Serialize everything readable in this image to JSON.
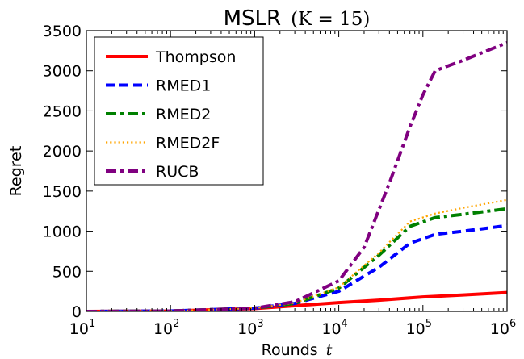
{
  "chart_data": {
    "type": "line",
    "title": "MSLR",
    "title_math": "(K = 15)",
    "xlabel": "Rounds",
    "xlabel_math": "t",
    "ylabel": "Regret",
    "x_scale": "log",
    "xlim": [
      10,
      1000000
    ],
    "ylim": [
      0,
      3500
    ],
    "x_ticks": [
      {
        "value": 10,
        "base": "10",
        "exp": "1"
      },
      {
        "value": 100,
        "base": "10",
        "exp": "2"
      },
      {
        "value": 1000,
        "base": "10",
        "exp": "3"
      },
      {
        "value": 10000,
        "base": "10",
        "exp": "4"
      },
      {
        "value": 100000,
        "base": "10",
        "exp": "5"
      },
      {
        "value": 1000000,
        "base": "10",
        "exp": "6"
      }
    ],
    "y_ticks": [
      "0",
      "500",
      "1000",
      "1500",
      "2000",
      "2500",
      "3000",
      "3500"
    ],
    "grid": false,
    "legend_position": "top-left",
    "series": [
      {
        "name": "Thompson",
        "color": "#ff0000",
        "style": "solid",
        "x": [
          10,
          100,
          1000,
          3000,
          10000,
          30000,
          100000,
          300000,
          1000000
        ],
        "y": [
          0,
          5,
          35,
          70,
          110,
          140,
          180,
          205,
          235
        ]
      },
      {
        "name": "RMED1",
        "color": "#0000ff",
        "style": "dashed",
        "x": [
          10,
          100,
          1000,
          3000,
          10000,
          30000,
          70000,
          140000,
          300000,
          1000000
        ],
        "y": [
          0,
          5,
          40,
          100,
          250,
          550,
          850,
          960,
          1000,
          1070
        ]
      },
      {
        "name": "RMED2",
        "color": "#008000",
        "style": "dashdot",
        "x": [
          10,
          100,
          1000,
          3000,
          10000,
          30000,
          70000,
          140000,
          300000,
          1000000
        ],
        "y": [
          0,
          5,
          40,
          100,
          290,
          700,
          1060,
          1170,
          1210,
          1280
        ]
      },
      {
        "name": "RMED2F",
        "color": "#ffa500",
        "style": "dotted",
        "x": [
          10,
          100,
          1000,
          3000,
          10000,
          30000,
          70000,
          140000,
          300000,
          1000000
        ],
        "y": [
          0,
          5,
          40,
          105,
          300,
          730,
          1120,
          1220,
          1290,
          1390
        ]
      },
      {
        "name": "RUCB",
        "color": "#800080",
        "style": "dashdot",
        "x": [
          10,
          100,
          1000,
          3000,
          10000,
          20000,
          40000,
          70000,
          100000,
          140000,
          300000,
          1000000
        ],
        "y": [
          0,
          5,
          40,
          120,
          380,
          800,
          1600,
          2300,
          2700,
          3000,
          3130,
          3350
        ]
      }
    ]
  }
}
